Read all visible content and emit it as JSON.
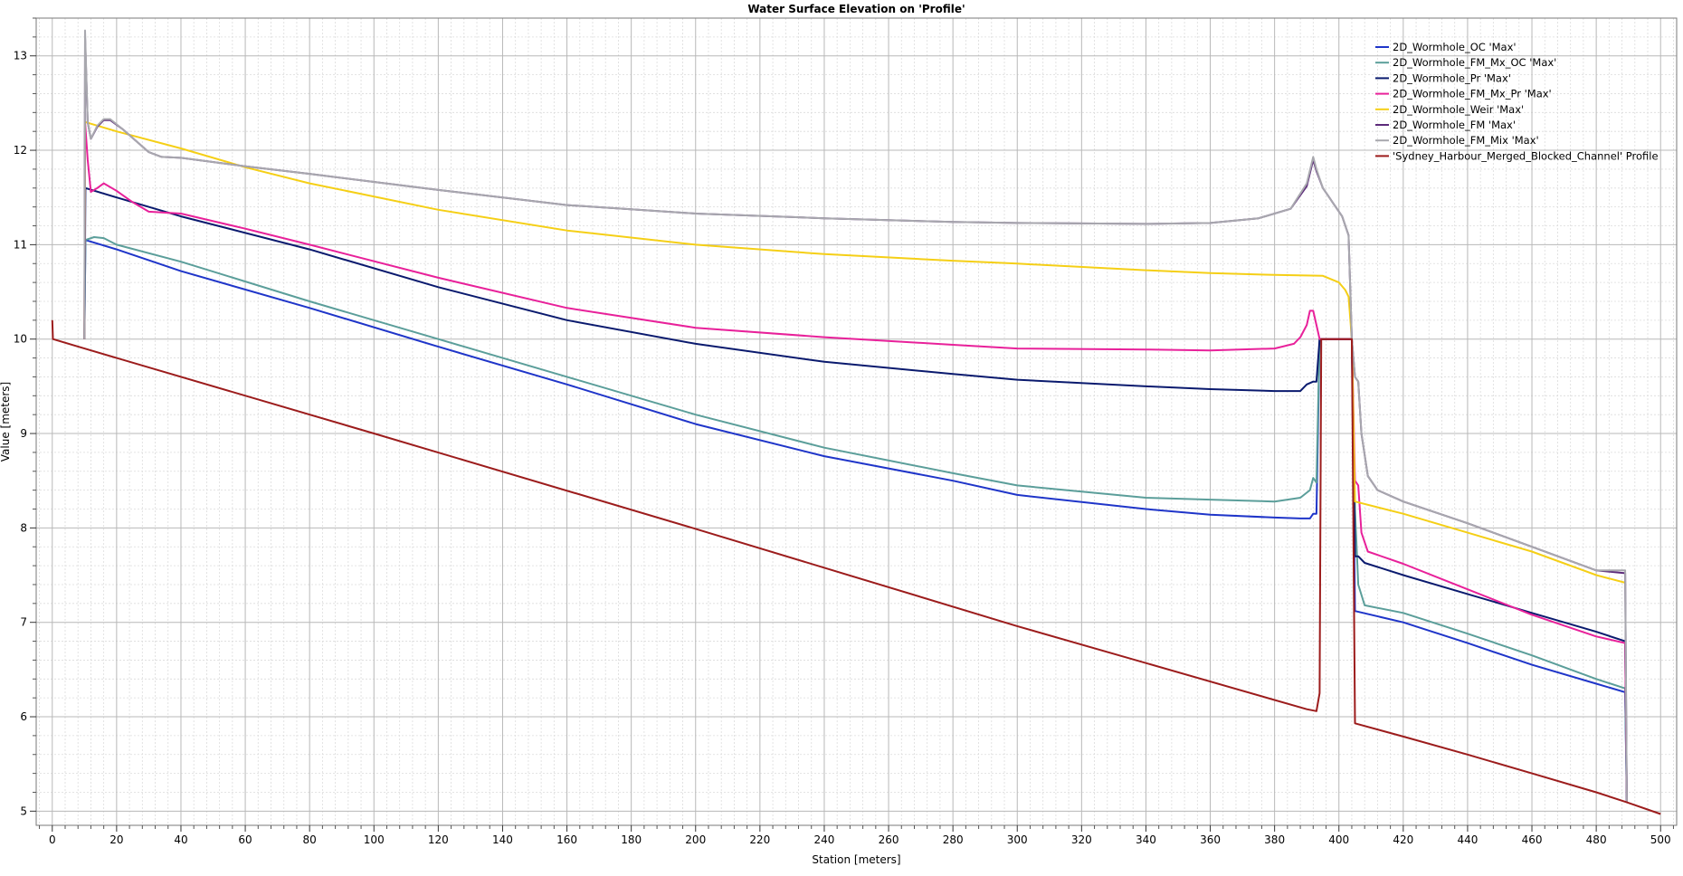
{
  "chart_data": {
    "type": "line",
    "title": "Water Surface Elevation on 'Profile'",
    "xlabel": "Station [meters]",
    "ylabel": "Value [meters]",
    "xlim": [
      -5,
      505
    ],
    "ylim": [
      4.85,
      13.4
    ],
    "x_ticks": [
      0,
      20,
      40,
      60,
      80,
      100,
      120,
      140,
      160,
      180,
      200,
      220,
      240,
      260,
      280,
      300,
      320,
      340,
      360,
      380,
      400,
      420,
      440,
      460,
      480,
      500
    ],
    "y_ticks": [
      5,
      6,
      7,
      8,
      9,
      10,
      11,
      12,
      13
    ],
    "grid": true,
    "legend_position": "top-right",
    "series": [
      {
        "name": "2D_Wormhole_OC 'Max'",
        "color": "#1f35c9",
        "points": [
          [
            10,
            10.0
          ],
          [
            10.3,
            11.05
          ],
          [
            20,
            10.95
          ],
          [
            40,
            10.72
          ],
          [
            80,
            10.33
          ],
          [
            120,
            9.92
          ],
          [
            160,
            9.52
          ],
          [
            200,
            9.1
          ],
          [
            240,
            8.76
          ],
          [
            280,
            8.5
          ],
          [
            300,
            8.35
          ],
          [
            340,
            8.2
          ],
          [
            360,
            8.14
          ],
          [
            380,
            8.11
          ],
          [
            388,
            8.1
          ],
          [
            391,
            8.1
          ],
          [
            392,
            8.15
          ],
          [
            393,
            8.15
          ],
          [
            394,
            10.0
          ],
          [
            404,
            10.0
          ],
          [
            405,
            7.12
          ],
          [
            420,
            7.0
          ],
          [
            440,
            6.78
          ],
          [
            460,
            6.55
          ],
          [
            480,
            6.35
          ],
          [
            489,
            6.26
          ],
          [
            489.5,
            5.1
          ]
        ]
      },
      {
        "name": "2D_Wormhole_FM_Mx_OC 'Max'",
        "color": "#5b9e9a",
        "points": [
          [
            10,
            10.0
          ],
          [
            10.3,
            11.05
          ],
          [
            13,
            11.08
          ],
          [
            16,
            11.07
          ],
          [
            20,
            11.0
          ],
          [
            40,
            10.82
          ],
          [
            80,
            10.4
          ],
          [
            120,
            10.0
          ],
          [
            160,
            9.6
          ],
          [
            200,
            9.2
          ],
          [
            240,
            8.85
          ],
          [
            280,
            8.58
          ],
          [
            300,
            8.45
          ],
          [
            340,
            8.32
          ],
          [
            360,
            8.3
          ],
          [
            380,
            8.28
          ],
          [
            388,
            8.32
          ],
          [
            391,
            8.4
          ],
          [
            392,
            8.53
          ],
          [
            393,
            8.48
          ],
          [
            394,
            10.0
          ],
          [
            404,
            10.0
          ],
          [
            405,
            8.2
          ],
          [
            406,
            7.4
          ],
          [
            408,
            7.18
          ],
          [
            420,
            7.1
          ],
          [
            440,
            6.88
          ],
          [
            460,
            6.65
          ],
          [
            480,
            6.4
          ],
          [
            489,
            6.3
          ],
          [
            489.5,
            5.1
          ]
        ]
      },
      {
        "name": "2D_Wormhole_Pr 'Max'",
        "color": "#0a1a6e",
        "points": [
          [
            10,
            10.0
          ],
          [
            10.3,
            11.6
          ],
          [
            20,
            11.5
          ],
          [
            40,
            11.3
          ],
          [
            80,
            10.95
          ],
          [
            120,
            10.55
          ],
          [
            160,
            10.2
          ],
          [
            200,
            9.95
          ],
          [
            240,
            9.76
          ],
          [
            280,
            9.63
          ],
          [
            300,
            9.57
          ],
          [
            340,
            9.5
          ],
          [
            360,
            9.47
          ],
          [
            380,
            9.45
          ],
          [
            388,
            9.45
          ],
          [
            390,
            9.52
          ],
          [
            392,
            9.55
          ],
          [
            393,
            9.55
          ],
          [
            394,
            10.0
          ],
          [
            404,
            10.0
          ],
          [
            405,
            7.7
          ],
          [
            406,
            7.7
          ],
          [
            408,
            7.63
          ],
          [
            420,
            7.5
          ],
          [
            440,
            7.3
          ],
          [
            460,
            7.1
          ],
          [
            480,
            6.9
          ],
          [
            489,
            6.8
          ],
          [
            489.5,
            5.1
          ]
        ]
      },
      {
        "name": "2D_Wormhole_FM_Mx_Pr 'Max'",
        "color": "#e8219a",
        "points": [
          [
            10,
            10.0
          ],
          [
            10.2,
            12.3
          ],
          [
            11,
            11.9
          ],
          [
            12,
            11.56
          ],
          [
            14,
            11.6
          ],
          [
            16,
            11.65
          ],
          [
            20,
            11.57
          ],
          [
            25,
            11.45
          ],
          [
            30,
            11.35
          ],
          [
            40,
            11.33
          ],
          [
            60,
            11.17
          ],
          [
            80,
            11.0
          ],
          [
            120,
            10.65
          ],
          [
            160,
            10.33
          ],
          [
            200,
            10.12
          ],
          [
            240,
            10.02
          ],
          [
            280,
            9.94
          ],
          [
            300,
            9.9
          ],
          [
            340,
            9.89
          ],
          [
            360,
            9.88
          ],
          [
            380,
            9.9
          ],
          [
            386,
            9.95
          ],
          [
            388,
            10.02
          ],
          [
            390,
            10.15
          ],
          [
            391,
            10.3
          ],
          [
            392,
            10.3
          ],
          [
            393,
            10.15
          ],
          [
            394,
            10.0
          ],
          [
            404,
            10.0
          ],
          [
            405,
            8.5
          ],
          [
            406,
            8.45
          ],
          [
            407,
            7.95
          ],
          [
            409,
            7.75
          ],
          [
            420,
            7.62
          ],
          [
            440,
            7.35
          ],
          [
            460,
            7.08
          ],
          [
            480,
            6.85
          ],
          [
            489,
            6.78
          ],
          [
            489.5,
            5.1
          ]
        ]
      },
      {
        "name": "2D_Wormhole_Weir 'Max'",
        "color": "#f5cf16",
        "points": [
          [
            10,
            10.0
          ],
          [
            10.2,
            12.3
          ],
          [
            20,
            12.2
          ],
          [
            40,
            12.02
          ],
          [
            60,
            11.82
          ],
          [
            80,
            11.65
          ],
          [
            120,
            11.37
          ],
          [
            160,
            11.15
          ],
          [
            200,
            11.0
          ],
          [
            240,
            10.9
          ],
          [
            280,
            10.83
          ],
          [
            300,
            10.8
          ],
          [
            340,
            10.73
          ],
          [
            360,
            10.7
          ],
          [
            380,
            10.68
          ],
          [
            395,
            10.67
          ],
          [
            400,
            10.6
          ],
          [
            402,
            10.52
          ],
          [
            403,
            10.45
          ],
          [
            404,
            10.0
          ],
          [
            405,
            8.28
          ],
          [
            420,
            8.15
          ],
          [
            440,
            7.95
          ],
          [
            460,
            7.75
          ],
          [
            480,
            7.5
          ],
          [
            489,
            7.42
          ]
        ]
      },
      {
        "name": "2D_Wormhole_FM 'Max'",
        "color": "#5c2a7a",
        "points": [
          [
            10,
            10.0
          ],
          [
            10.2,
            13.2
          ],
          [
            11,
            12.3
          ],
          [
            12,
            12.12
          ],
          [
            14,
            12.25
          ],
          [
            16,
            12.32
          ],
          [
            18,
            12.32
          ],
          [
            22,
            12.22
          ],
          [
            26,
            12.1
          ],
          [
            30,
            11.98
          ],
          [
            34,
            11.93
          ],
          [
            40,
            11.92
          ],
          [
            60,
            11.83
          ],
          [
            80,
            11.75
          ],
          [
            120,
            11.58
          ],
          [
            160,
            11.42
          ],
          [
            200,
            11.33
          ],
          [
            240,
            11.28
          ],
          [
            280,
            11.24
          ],
          [
            300,
            11.23
          ],
          [
            340,
            11.22
          ],
          [
            360,
            11.23
          ],
          [
            375,
            11.28
          ],
          [
            385,
            11.38
          ],
          [
            390,
            11.62
          ],
          [
            392,
            11.9
          ],
          [
            393,
            11.78
          ],
          [
            395,
            11.6
          ],
          [
            397,
            11.5
          ],
          [
            398,
            11.45
          ],
          [
            399,
            11.4
          ],
          [
            401,
            11.3
          ],
          [
            403,
            11.1
          ],
          [
            404,
            10.0
          ],
          [
            405,
            9.6
          ],
          [
            406,
            9.55
          ],
          [
            407,
            9.0
          ],
          [
            409,
            8.55
          ],
          [
            412,
            8.4
          ],
          [
            420,
            8.28
          ],
          [
            440,
            8.05
          ],
          [
            460,
            7.8
          ],
          [
            480,
            7.55
          ],
          [
            489,
            7.52
          ],
          [
            489.5,
            5.1
          ]
        ]
      },
      {
        "name": "2D_Wormhole_FM_Mix 'Max'",
        "color": "#a8a8ae",
        "points": [
          [
            10,
            10.0
          ],
          [
            10.2,
            13.27
          ],
          [
            11,
            12.3
          ],
          [
            12,
            12.12
          ],
          [
            14,
            12.26
          ],
          [
            16,
            12.33
          ],
          [
            18,
            12.33
          ],
          [
            22,
            12.22
          ],
          [
            26,
            12.1
          ],
          [
            30,
            11.98
          ],
          [
            34,
            11.93
          ],
          [
            40,
            11.92
          ],
          [
            60,
            11.83
          ],
          [
            80,
            11.75
          ],
          [
            120,
            11.58
          ],
          [
            160,
            11.42
          ],
          [
            200,
            11.33
          ],
          [
            240,
            11.28
          ],
          [
            280,
            11.24
          ],
          [
            300,
            11.23
          ],
          [
            340,
            11.22
          ],
          [
            360,
            11.23
          ],
          [
            375,
            11.28
          ],
          [
            385,
            11.38
          ],
          [
            390,
            11.65
          ],
          [
            392,
            11.93
          ],
          [
            393,
            11.8
          ],
          [
            395,
            11.6
          ],
          [
            397,
            11.5
          ],
          [
            398,
            11.45
          ],
          [
            399,
            11.4
          ],
          [
            401,
            11.3
          ],
          [
            403,
            11.1
          ],
          [
            404,
            10.0
          ],
          [
            405,
            9.6
          ],
          [
            406,
            9.55
          ],
          [
            407,
            9.0
          ],
          [
            409,
            8.55
          ],
          [
            412,
            8.4
          ],
          [
            420,
            8.28
          ],
          [
            440,
            8.05
          ],
          [
            460,
            7.8
          ],
          [
            480,
            7.55
          ],
          [
            489,
            7.55
          ],
          [
            489.5,
            5.1
          ]
        ]
      },
      {
        "name": "'Sydney_Harbour_Merged_Blocked_Channel' Profile",
        "color": "#9c1c1c",
        "points": [
          [
            0,
            10.2
          ],
          [
            0.2,
            10.0
          ],
          [
            10,
            9.9
          ],
          [
            100,
            9.0
          ],
          [
            200,
            7.99
          ],
          [
            300,
            6.96
          ],
          [
            390,
            6.08
          ],
          [
            393,
            6.06
          ],
          [
            394,
            6.25
          ],
          [
            394.5,
            10.0
          ],
          [
            404,
            10.0
          ],
          [
            405,
            5.93
          ],
          [
            420,
            5.79
          ],
          [
            440,
            5.6
          ],
          [
            460,
            5.4
          ],
          [
            480,
            5.2
          ],
          [
            489,
            5.1
          ],
          [
            500,
            4.97
          ]
        ]
      }
    ]
  }
}
